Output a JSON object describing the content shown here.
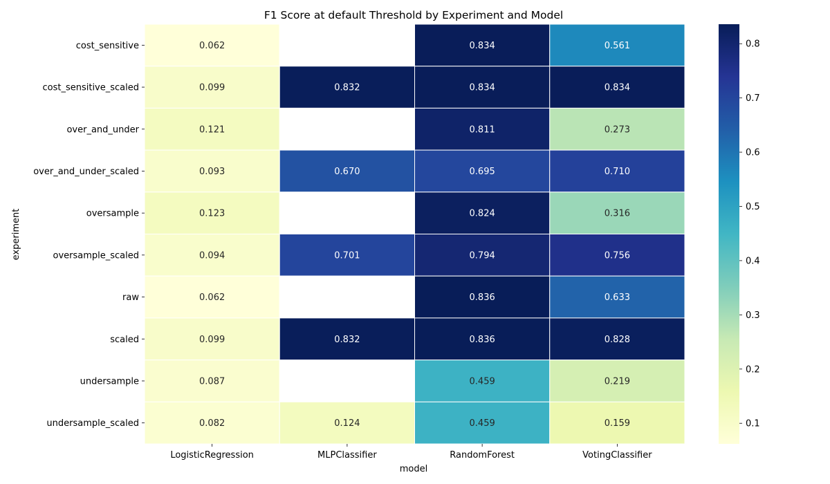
{
  "chart_data": {
    "type": "heatmap",
    "title": "F1 Score at default Threshold by Experiment and Model",
    "xlabel": "model",
    "ylabel": "experiment",
    "columns": [
      "LogisticRegression",
      "MLPClassifier",
      "RandomForest",
      "VotingClassifier"
    ],
    "rows": [
      "cost_sensitive",
      "cost_sensitive_scaled",
      "over_and_under",
      "over_and_under_scaled",
      "oversample",
      "oversample_scaled",
      "raw",
      "scaled",
      "undersample",
      "undersample_scaled"
    ],
    "values": [
      [
        0.062,
        null,
        0.834,
        0.561
      ],
      [
        0.099,
        0.832,
        0.834,
        0.834
      ],
      [
        0.121,
        null,
        0.811,
        0.273
      ],
      [
        0.093,
        0.67,
        0.695,
        0.71
      ],
      [
        0.123,
        null,
        0.824,
        0.316
      ],
      [
        0.094,
        0.701,
        0.794,
        0.756
      ],
      [
        0.062,
        null,
        0.836,
        0.633
      ],
      [
        0.099,
        0.832,
        0.836,
        0.828
      ],
      [
        0.087,
        null,
        0.459,
        0.219
      ],
      [
        0.082,
        0.124,
        0.459,
        0.159
      ]
    ],
    "value_labels": [
      [
        "0.062",
        "",
        "0.834",
        "0.561"
      ],
      [
        "0.099",
        "0.832",
        "0.834",
        "0.834"
      ],
      [
        "0.121",
        "",
        "0.811",
        "0.273"
      ],
      [
        "0.093",
        "0.670",
        "0.695",
        "0.710"
      ],
      [
        "0.123",
        "",
        "0.824",
        "0.316"
      ],
      [
        "0.094",
        "0.701",
        "0.794",
        "0.756"
      ],
      [
        "0.062",
        "",
        "0.836",
        "0.633"
      ],
      [
        "0.099",
        "0.832",
        "0.836",
        "0.828"
      ],
      [
        "0.087",
        "",
        "0.459",
        "0.219"
      ],
      [
        "0.082",
        "0.124",
        "0.459",
        "0.159"
      ]
    ],
    "colormap": "YlGnBu",
    "colorbar": {
      "range": [
        0.062,
        0.836
      ],
      "ticks": [
        0.1,
        0.2,
        0.3,
        0.4,
        0.5,
        0.6,
        0.7,
        0.8
      ],
      "tick_labels": [
        "0.1",
        "0.2",
        "0.3",
        "0.4",
        "0.5",
        "0.6",
        "0.7",
        "0.8"
      ]
    },
    "missing_color": "#ffffff",
    "grid": false
  }
}
